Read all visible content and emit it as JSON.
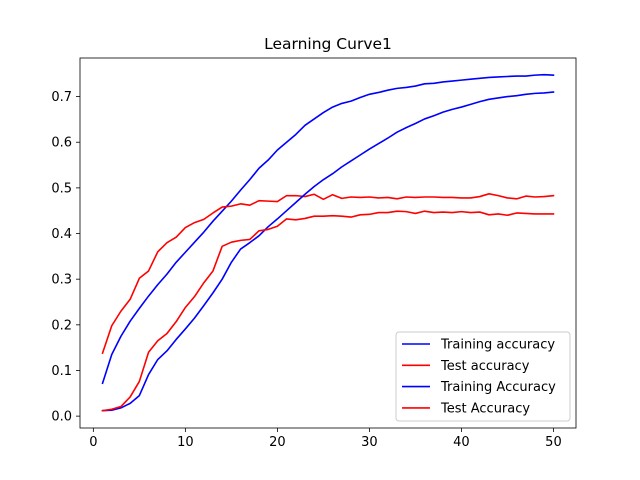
{
  "chart_data": {
    "type": "line",
    "title": "Learning Curve1",
    "xlabel": "",
    "ylabel": "",
    "xlim": [
      -1.45,
      52.45
    ],
    "ylim": [
      -0.026,
      0.7845
    ],
    "xticks": [
      0,
      10,
      20,
      30,
      40,
      50
    ],
    "yticks": [
      0.0,
      0.1,
      0.2,
      0.3,
      0.4,
      0.5,
      0.6,
      0.7
    ],
    "ytick_labels": [
      "0.0",
      "0.1",
      "0.2",
      "0.3",
      "0.4",
      "0.5",
      "0.6",
      "0.7"
    ],
    "grid": false,
    "legend_position": "lower-right",
    "x": [
      1,
      2,
      3,
      4,
      5,
      6,
      7,
      8,
      9,
      10,
      11,
      12,
      13,
      14,
      15,
      16,
      17,
      18,
      19,
      20,
      21,
      22,
      23,
      24,
      25,
      26,
      27,
      28,
      29,
      30,
      31,
      32,
      33,
      34,
      35,
      36,
      37,
      38,
      39,
      40,
      41,
      42,
      43,
      44,
      45,
      46,
      47,
      48,
      49,
      50
    ],
    "series": [
      {
        "name": "Training accuracy",
        "color": "#0000ff",
        "values": [
          0.072,
          0.135,
          0.175,
          0.208,
          0.236,
          0.263,
          0.288,
          0.311,
          0.337,
          0.359,
          0.381,
          0.403,
          0.427,
          0.449,
          0.471,
          0.495,
          0.518,
          0.543,
          0.561,
          0.583,
          0.6,
          0.617,
          0.637,
          0.651,
          0.665,
          0.677,
          0.685,
          0.69,
          0.698,
          0.705,
          0.709,
          0.714,
          0.718,
          0.72,
          0.723,
          0.728,
          0.729,
          0.732,
          0.734,
          0.736,
          0.738,
          0.74,
          0.742,
          0.743,
          0.744,
          0.745,
          0.745,
          0.747,
          0.748,
          0.747
        ]
      },
      {
        "name": "Test accuracy",
        "color": "#ff0000",
        "values": [
          0.138,
          0.198,
          0.23,
          0.256,
          0.302,
          0.318,
          0.36,
          0.38,
          0.392,
          0.413,
          0.424,
          0.431,
          0.445,
          0.458,
          0.46,
          0.465,
          0.462,
          0.472,
          0.471,
          0.47,
          0.483,
          0.483,
          0.481,
          0.486,
          0.475,
          0.485,
          0.477,
          0.48,
          0.479,
          0.48,
          0.478,
          0.479,
          0.476,
          0.48,
          0.479,
          0.48,
          0.48,
          0.479,
          0.479,
          0.478,
          0.478,
          0.481,
          0.487,
          0.483,
          0.478,
          0.476,
          0.482,
          0.48,
          0.481,
          0.483
        ]
      },
      {
        "name": "Training Accuracy",
        "color": "#0000ff",
        "values": [
          0.012,
          0.013,
          0.018,
          0.028,
          0.045,
          0.091,
          0.124,
          0.143,
          0.168,
          0.191,
          0.215,
          0.242,
          0.27,
          0.3,
          0.337,
          0.366,
          0.38,
          0.395,
          0.415,
          0.432,
          0.45,
          0.468,
          0.486,
          0.503,
          0.518,
          0.531,
          0.546,
          0.559,
          0.572,
          0.585,
          0.597,
          0.609,
          0.622,
          0.632,
          0.641,
          0.651,
          0.658,
          0.666,
          0.672,
          0.677,
          0.683,
          0.689,
          0.694,
          0.697,
          0.7,
          0.702,
          0.705,
          0.707,
          0.708,
          0.71
        ]
      },
      {
        "name": "Test Accuracy",
        "color": "#ff0000",
        "values": [
          0.012,
          0.015,
          0.021,
          0.042,
          0.076,
          0.14,
          0.165,
          0.181,
          0.207,
          0.238,
          0.262,
          0.292,
          0.318,
          0.372,
          0.381,
          0.385,
          0.387,
          0.406,
          0.409,
          0.416,
          0.432,
          0.43,
          0.433,
          0.438,
          0.438,
          0.439,
          0.438,
          0.436,
          0.441,
          0.442,
          0.446,
          0.446,
          0.449,
          0.448,
          0.444,
          0.449,
          0.446,
          0.447,
          0.446,
          0.448,
          0.446,
          0.447,
          0.441,
          0.443,
          0.44,
          0.445,
          0.444,
          0.443,
          0.443,
          0.443
        ]
      }
    ]
  }
}
